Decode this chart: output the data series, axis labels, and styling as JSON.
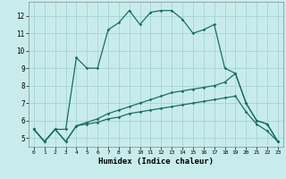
{
  "xlabel": "Humidex (Indice chaleur)",
  "bg_color": "#c8ecec",
  "grid_color": "#a8d4d4",
  "line_color": "#1a6e60",
  "xlim": [
    -0.5,
    23.5
  ],
  "ylim": [
    4.5,
    12.8
  ],
  "xticks": [
    0,
    1,
    2,
    3,
    4,
    5,
    6,
    7,
    8,
    9,
    10,
    11,
    12,
    13,
    14,
    15,
    16,
    17,
    18,
    19,
    20,
    21,
    22,
    23
  ],
  "yticks": [
    5,
    6,
    7,
    8,
    9,
    10,
    11,
    12
  ],
  "line1_x": [
    0,
    1,
    2,
    3,
    4,
    5,
    6,
    7,
    8,
    9,
    10,
    11,
    12,
    13,
    14,
    15,
    16,
    17,
    18,
    19,
    20,
    21,
    22,
    23
  ],
  "line1_y": [
    5.5,
    4.8,
    5.5,
    5.5,
    9.6,
    9.0,
    9.0,
    11.2,
    11.6,
    12.3,
    11.5,
    12.2,
    12.3,
    12.3,
    11.8,
    11.0,
    11.2,
    11.5,
    9.0,
    8.7,
    7.0,
    6.0,
    5.8,
    4.8
  ],
  "line2_x": [
    0,
    1,
    2,
    3,
    4,
    5,
    6,
    7,
    8,
    9,
    10,
    11,
    12,
    13,
    14,
    15,
    16,
    17,
    18,
    19,
    20,
    21,
    22,
    23
  ],
  "line2_y": [
    5.5,
    4.8,
    5.5,
    4.8,
    5.7,
    5.9,
    6.1,
    6.4,
    6.6,
    6.8,
    7.0,
    7.2,
    7.4,
    7.6,
    7.7,
    7.8,
    7.9,
    8.0,
    8.2,
    8.7,
    7.0,
    6.0,
    5.8,
    4.8
  ],
  "line3_x": [
    0,
    1,
    2,
    3,
    4,
    5,
    6,
    7,
    8,
    9,
    10,
    11,
    12,
    13,
    14,
    15,
    16,
    17,
    18,
    19,
    20,
    21,
    22,
    23
  ],
  "line3_y": [
    5.5,
    4.8,
    5.5,
    4.8,
    5.7,
    5.8,
    5.9,
    6.1,
    6.2,
    6.4,
    6.5,
    6.6,
    6.7,
    6.8,
    6.9,
    7.0,
    7.1,
    7.2,
    7.3,
    7.4,
    6.5,
    5.8,
    5.4,
    4.8
  ]
}
